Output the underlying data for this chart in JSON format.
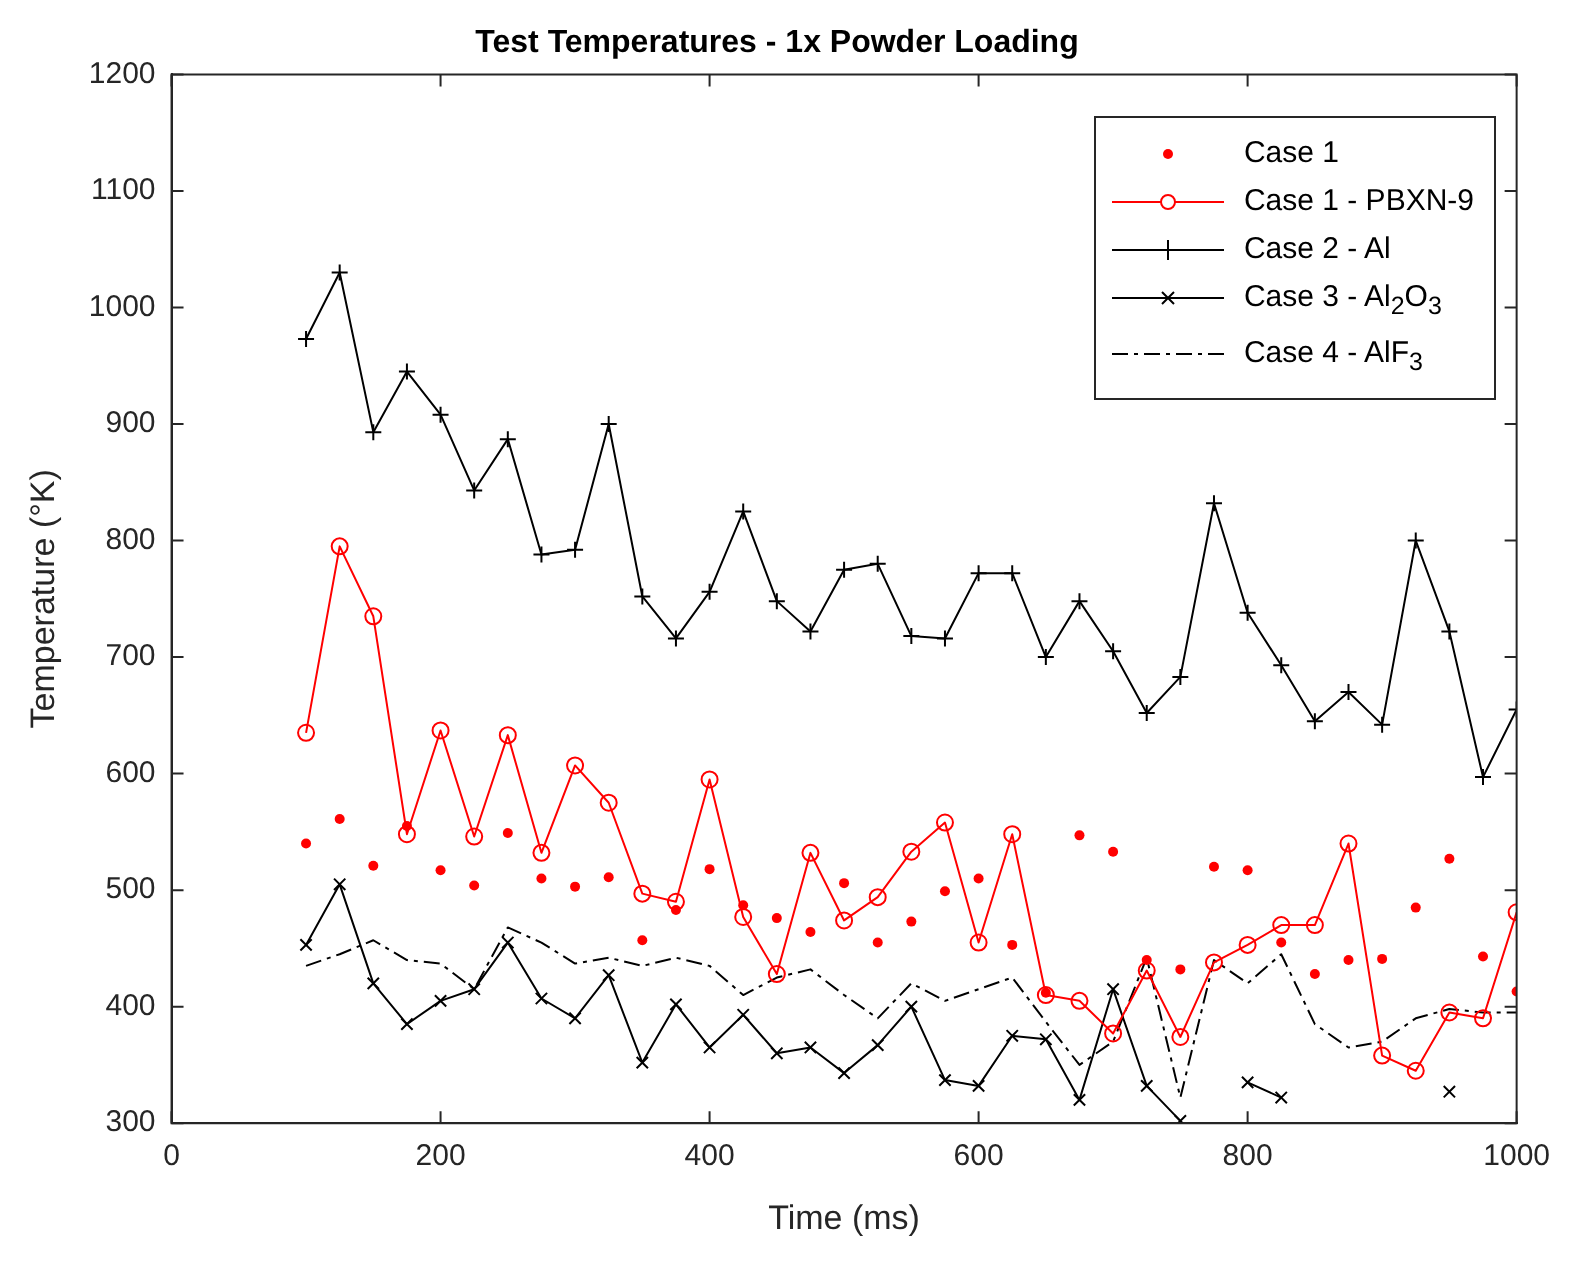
{
  "chart_data": {
    "type": "line",
    "title": "Test Temperatures - 1x Powder Loading",
    "xlabel": "Time (ms)",
    "ylabel": "Temperature (°K)",
    "x": [
      100,
      125,
      150,
      175,
      200,
      225,
      250,
      275,
      300,
      325,
      350,
      375,
      400,
      425,
      450,
      475,
      500,
      525,
      550,
      575,
      600,
      625,
      650,
      675,
      700,
      725,
      750,
      775,
      800,
      825,
      850,
      875,
      900,
      925,
      950,
      975,
      1000
    ],
    "series": [
      {
        "name": "Case 1",
        "type": "scatter",
        "color": "#ff0000",
        "marker": "circle",
        "values": [
          540,
          561,
          521,
          555,
          517,
          504,
          549,
          510,
          503,
          511,
          457,
          483,
          518,
          487,
          476,
          464,
          506,
          455,
          473,
          499,
          510,
          453,
          412,
          547,
          533,
          440,
          432,
          520,
          517,
          455,
          428,
          440,
          441,
          485,
          527,
          443,
          413
        ]
      },
      {
        "name": "Case 1 - PBXN-9",
        "type": "line",
        "color": "#ff0000",
        "marker": "circle",
        "line_style": "solid",
        "values": [
          635,
          795,
          735,
          548,
          637,
          546,
          633,
          532,
          607,
          575,
          497,
          490,
          595,
          477,
          428,
          532,
          474,
          494,
          533,
          558,
          455,
          548,
          410,
          405,
          377,
          431,
          374,
          438,
          453,
          470,
          470,
          540,
          358,
          345,
          395,
          390,
          481
        ]
      },
      {
        "name": "Case 2 - Al",
        "type": "line",
        "color": "#000000",
        "marker": "cross",
        "line_style": "solid",
        "values": [
          973,
          1030,
          893,
          945,
          908,
          843,
          887,
          788,
          792,
          900,
          752,
          716,
          756,
          825,
          748,
          722,
          775,
          780,
          718,
          716,
          772,
          772,
          700,
          748,
          705,
          652,
          683,
          832,
          738,
          693,
          645,
          670,
          642,
          800,
          722,
          597,
          655
        ]
      },
      {
        "name": "Case 3 - Al$_{2}$O$_{3}$",
        "type": "line",
        "color": "#000000",
        "marker": "x",
        "line_style": "solid",
        "values": [
          453,
          505,
          420,
          385,
          405,
          415,
          455,
          407,
          390,
          427,
          352,
          402,
          365,
          393,
          360,
          365,
          343,
          367,
          400,
          337,
          332,
          375,
          372,
          320,
          415,
          332,
          302,
          null,
          335,
          322,
          null,
          null,
          null,
          null,
          327,
          null,
          null
        ]
      },
      {
        "name": "Case 4 - AlF$_{3}$",
        "type": "line",
        "color": "#000000",
        "marker": "none",
        "line_style": "dashed",
        "values": [
          435,
          445,
          457,
          440,
          437,
          415,
          468,
          455,
          437,
          442,
          435,
          442,
          435,
          410,
          425,
          432,
          410,
          390,
          420,
          405,
          415,
          425,
          387,
          350,
          370,
          442,
          322,
          440,
          420,
          445,
          385,
          365,
          370,
          390,
          398,
          395,
          395
        ]
      }
    ],
    "xlim": [
      0,
      1000
    ],
    "xticks": [
      0,
      200,
      400,
      600,
      800,
      1000
    ],
    "ylim": [
      300,
      1200
    ],
    "yticks": [
      300,
      400,
      500,
      600,
      700,
      800,
      900,
      1000,
      1100,
      1200
    ],
    "grid": false,
    "legend": "top right"
  }
}
